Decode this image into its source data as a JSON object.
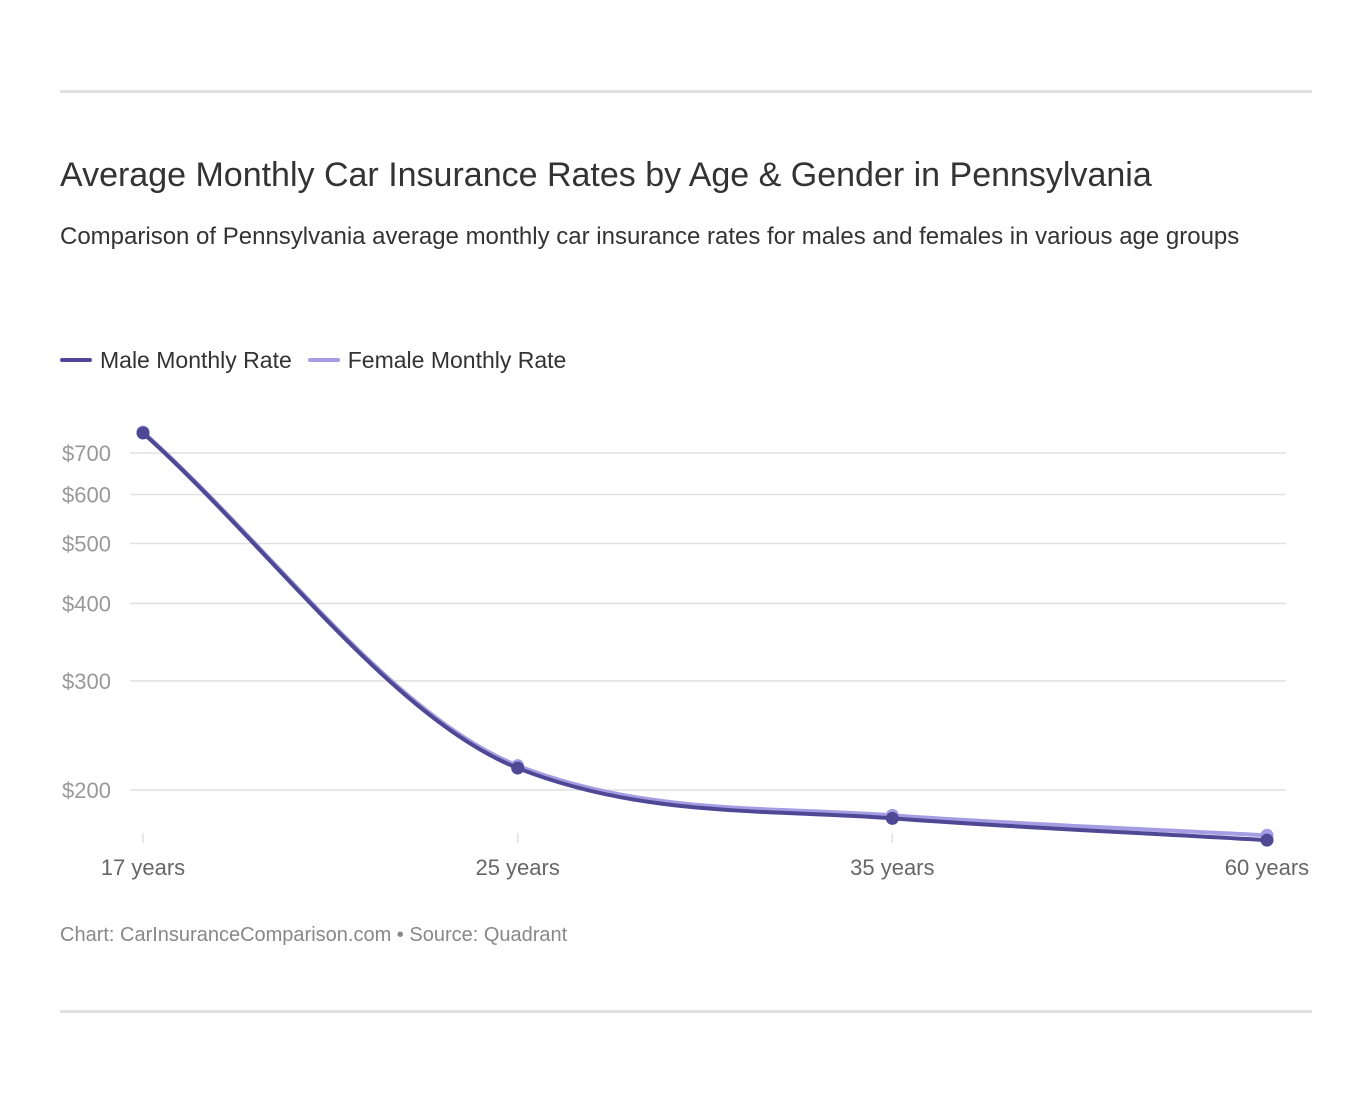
{
  "header": {
    "title": "Average Monthly Car Insurance Rates by Age & Gender in Pennsylvania",
    "subtitle": "Comparison of Pennsylvania average monthly car insurance rates for males and females in various age groups"
  },
  "footer": {
    "credit": "Chart: CarInsuranceComparison.com • Source: Quadrant"
  },
  "colors": {
    "male": "#4f4895",
    "female": "#a49de3",
    "grid": "#e1e1e1",
    "rule": "#e1e1e1"
  },
  "chart_data": {
    "type": "line",
    "title": "Average Monthly Car Insurance Rates by Age & Gender in Pennsylvania",
    "xlabel": "",
    "ylabel": "",
    "scale": "log",
    "categories": [
      "17 years",
      "25 years",
      "35 years",
      "60 years"
    ],
    "y_ticks": [
      200,
      300,
      400,
      500,
      600,
      700
    ],
    "y_tick_labels": [
      "$200",
      "$300",
      "$400",
      "$500",
      "$600",
      "$700"
    ],
    "ylim": [
      160,
      840
    ],
    "legend_position": "top-left",
    "grid": true,
    "series": [
      {
        "name": "Male Monthly Rate",
        "color": "#4f4895",
        "values": [
          754,
          217,
          180,
          166
        ]
      },
      {
        "name": "Female Monthly Rate",
        "color": "#a49de3",
        "values": [
          757,
          219,
          182,
          169
        ]
      }
    ]
  }
}
